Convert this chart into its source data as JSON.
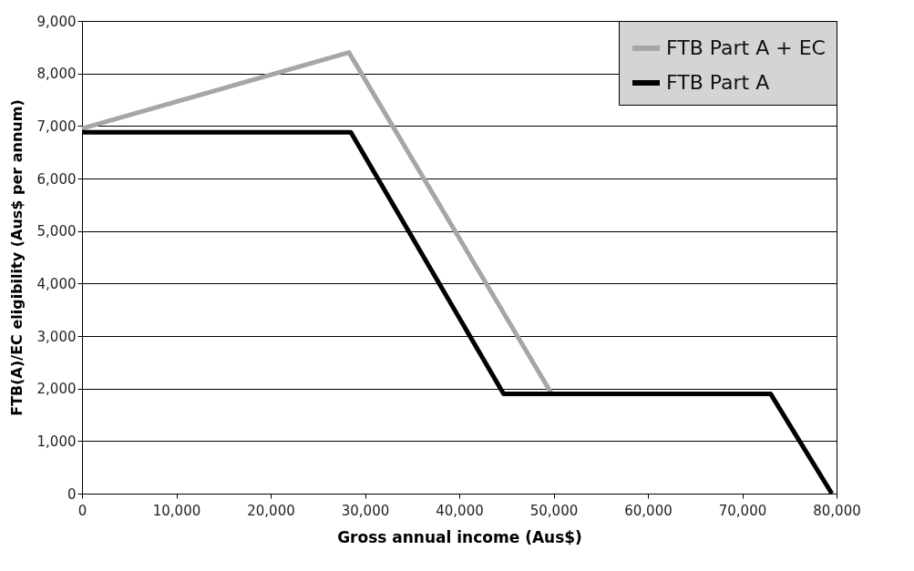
{
  "chart_data": {
    "type": "line",
    "xlabel": "Gross annual income (Aus$)",
    "ylabel": "FTB(A)/EC eligibility (Aus$ per annum)",
    "xlim": [
      0,
      80000
    ],
    "xticks": [
      {
        "value": 0,
        "label": "0"
      },
      {
        "value": 10000,
        "label": "10,000"
      },
      {
        "value": 20000,
        "label": "20,000"
      },
      {
        "value": 30000,
        "label": "30,000"
      },
      {
        "value": 40000,
        "label": "40,000"
      },
      {
        "value": 50000,
        "label": "50,000"
      },
      {
        "value": 60000,
        "label": "60,000"
      },
      {
        "value": 70000,
        "label": "70,000"
      },
      {
        "value": 80000,
        "label": "80,000"
      }
    ],
    "ylim": [
      0,
      9000
    ],
    "yticks": [
      {
        "value": 0,
        "label": "0"
      },
      {
        "value": 1000,
        "label": "1,000"
      },
      {
        "value": 2000,
        "label": "2,000"
      },
      {
        "value": 3000,
        "label": "3,000"
      },
      {
        "value": 4000,
        "label": "4,000"
      },
      {
        "value": 5000,
        "label": "5,000"
      },
      {
        "value": 6000,
        "label": "6,000"
      },
      {
        "value": 7000,
        "label": "7,000"
      },
      {
        "value": 8000,
        "label": "8,000"
      },
      {
        "value": 9000,
        "label": "9,000"
      }
    ],
    "grid": "y",
    "legend": "top right",
    "line_style": "solid",
    "series": [
      {
        "name": "FTB Part A + EC",
        "color": "#a6a6a6",
        "x": [
          0,
          28300,
          49800
        ],
        "values": [
          6950,
          8400,
          1900
        ]
      },
      {
        "name": "FTB Part A",
        "color": "#000000",
        "x": [
          0,
          28500,
          44700,
          73000,
          79500
        ],
        "values": [
          6880,
          6880,
          1900,
          1900,
          0
        ]
      }
    ]
  }
}
